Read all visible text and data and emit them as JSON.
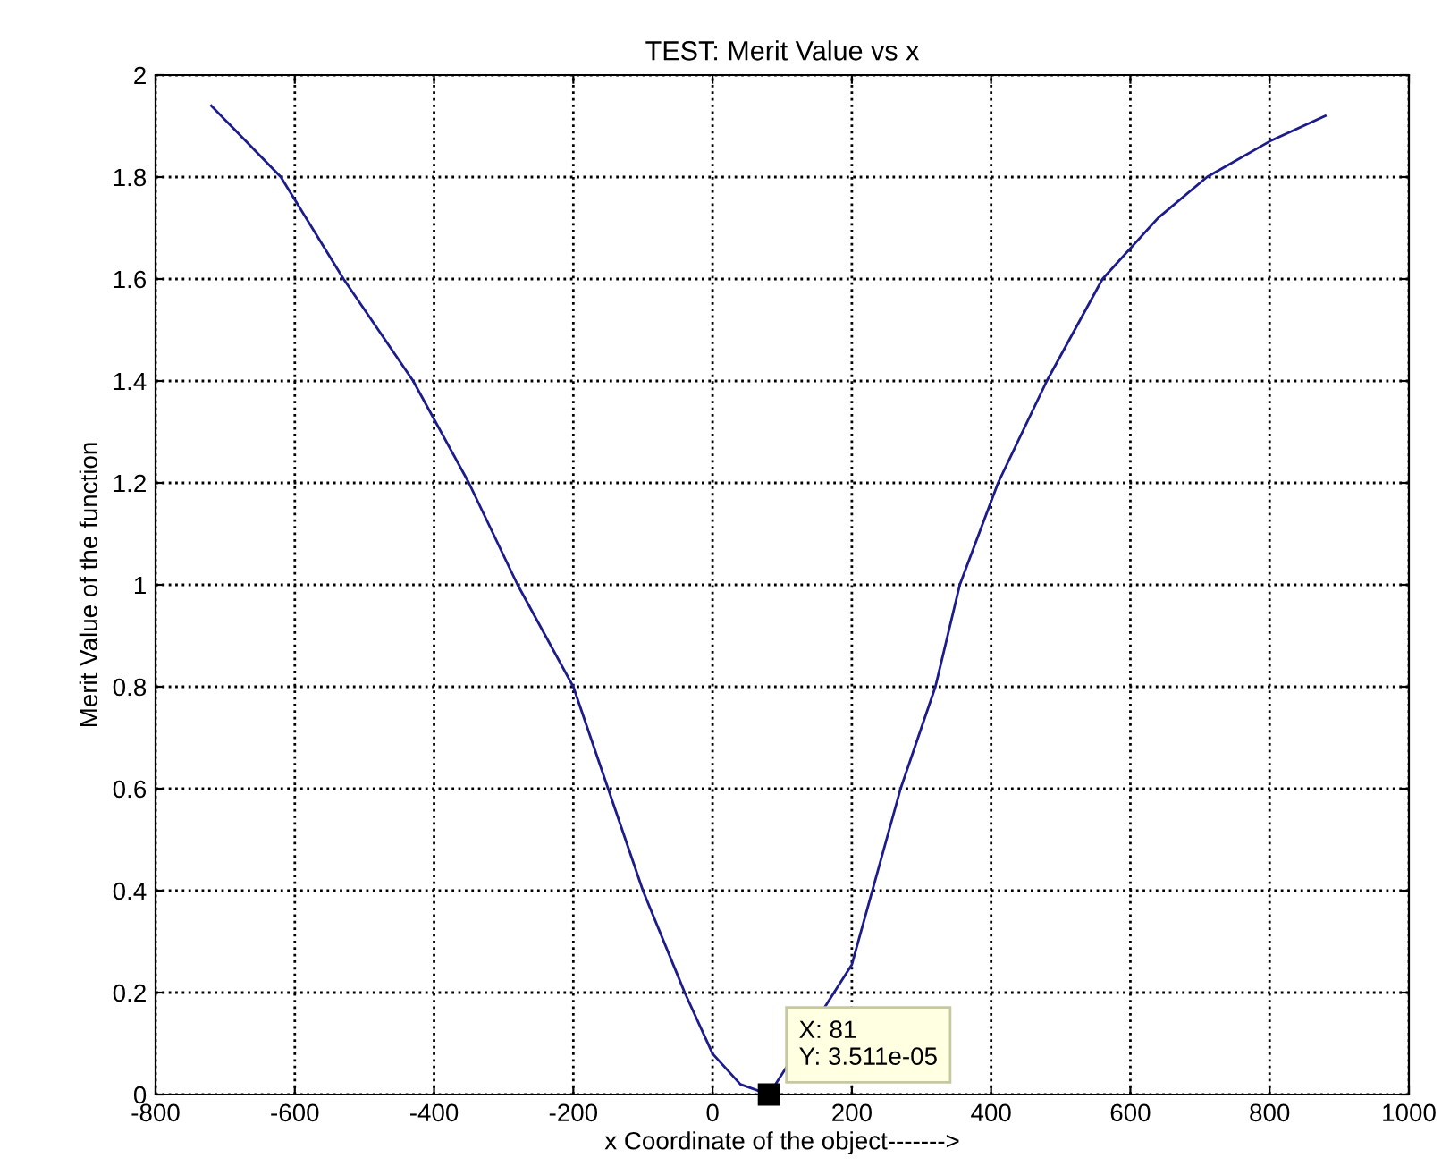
{
  "chart_data": {
    "type": "line",
    "title": "TEST: Merit Value vs x",
    "xlabel": "x Coordinate of the object------->",
    "ylabel": "Merit Value of the function",
    "series": [
      {
        "color": "#1c1c8c",
        "x": [
          -720,
          -620,
          -530,
          -430,
          -350,
          -280,
          -200,
          -150,
          -100,
          -40,
          0,
          40,
          81,
          200,
          270,
          320,
          355,
          410,
          480,
          560,
          640,
          710,
          800,
          880
        ],
        "values": [
          1.94,
          1.8,
          1.6,
          1.4,
          1.2,
          1.0,
          0.8,
          0.6,
          0.4,
          0.2,
          0.08,
          0.02,
          0,
          0.255,
          0.6,
          0.8,
          1.0,
          1.2,
          1.4,
          1.6,
          1.72,
          1.8,
          1.87,
          1.92
        ]
      }
    ],
    "annotations": [
      {
        "text": "X: 81\nY: 3.511e-05",
        "x": 81,
        "y": 0
      }
    ],
    "xlim": [
      -800,
      1000
    ],
    "xticks": [
      -800,
      -600,
      -400,
      -200,
      0,
      200,
      400,
      600,
      800,
      1000
    ],
    "ylim": [
      0,
      2
    ],
    "yticks": [
      0,
      0.2,
      0.4,
      0.6,
      0.8,
      1,
      1.2,
      1.4,
      1.6,
      1.8,
      2
    ],
    "grid": true,
    "line_style": "solid"
  }
}
